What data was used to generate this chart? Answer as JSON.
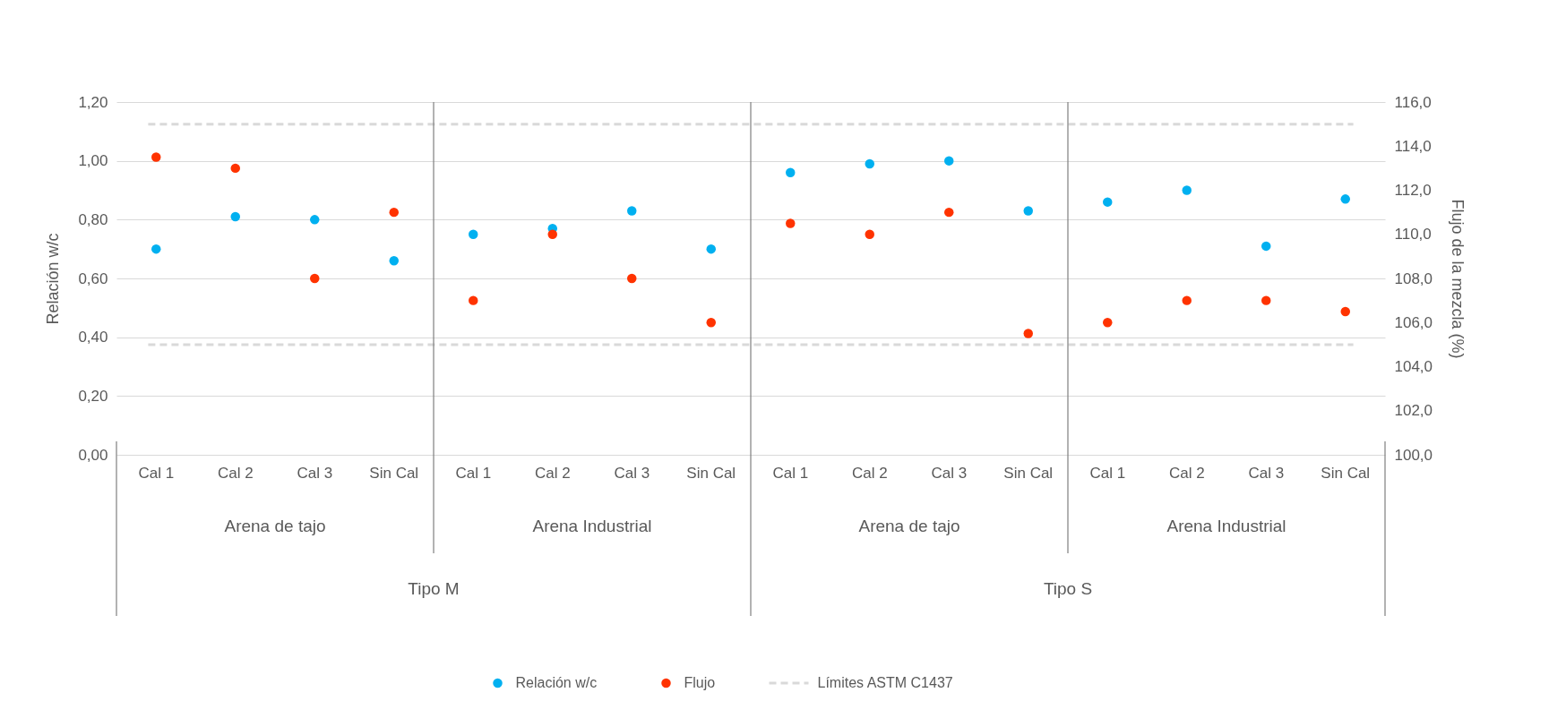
{
  "chart_data": {
    "type": "scatter",
    "ylabel": "Relación w/c",
    "y2label": "Flujo de la mezcla (%)",
    "categories": [
      "Cal 1",
      "Cal 2",
      "Cal 3",
      "Sin Cal",
      "Cal 1",
      "Cal 2",
      "Cal 3",
      "Sin Cal",
      "Cal 1",
      "Cal 2",
      "Cal 3",
      "Sin Cal",
      "Cal 1",
      "Cal 2",
      "Cal 3",
      "Sin Cal"
    ],
    "series": [
      {
        "name": "Relación w/c",
        "color": "#00b0f0",
        "values": [
          0.7,
          0.81,
          0.8,
          0.66,
          0.75,
          0.77,
          0.83,
          0.7,
          0.96,
          0.99,
          1.0,
          0.83,
          0.86,
          0.9,
          0.71,
          0.87
        ]
      },
      {
        "name": "Flujo",
        "color": "#ff3300",
        "axis": "y2",
        "values": [
          113.5,
          113.0,
          108.0,
          111.0,
          107.0,
          110.0,
          108.0,
          106.0,
          110.5,
          110.0,
          111.0,
          105.5,
          106.0,
          107.0,
          107.0,
          106.5
        ]
      }
    ],
    "ref_lines": [
      {
        "axis": "y2",
        "value": 115.0,
        "label": "Límites ASTM C1437",
        "color": "#d9d9d9",
        "line_style": "dashed"
      },
      {
        "axis": "y2",
        "value": 105.0,
        "color": "#d9d9d9",
        "line_style": "dashed"
      }
    ],
    "ylim": [
      0,
      1.2
    ],
    "yticks": [
      {
        "value": 0,
        "label": "0,00"
      },
      {
        "value": 0.2,
        "label": "0,20"
      },
      {
        "value": 0.4,
        "label": "0,40"
      },
      {
        "value": 0.6,
        "label": "0,60"
      },
      {
        "value": 0.8,
        "label": "0,80"
      },
      {
        "value": 1.0,
        "label": "1,00"
      },
      {
        "value": 1.2,
        "label": "1,20"
      }
    ],
    "y2lim": [
      100,
      116
    ],
    "y2ticks": [
      {
        "value": 100,
        "label": "100,0"
      },
      {
        "value": 102,
        "label": "102,0"
      },
      {
        "value": 104,
        "label": "104,0"
      },
      {
        "value": 106,
        "label": "106,0"
      },
      {
        "value": 108,
        "label": "108,0"
      },
      {
        "value": 110,
        "label": "110,0"
      },
      {
        "value": 112,
        "label": "112,0"
      },
      {
        "value": 114,
        "label": "114,0"
      },
      {
        "value": 116,
        "label": "116,0"
      }
    ],
    "annotations": [
      "Arena de tajo",
      "Arena Industrial",
      "Arena de tajo",
      "Arena Industrial",
      "Tipo M",
      "Tipo S"
    ],
    "grid": "y",
    "legend": "bottom",
    "marker": "circle"
  }
}
